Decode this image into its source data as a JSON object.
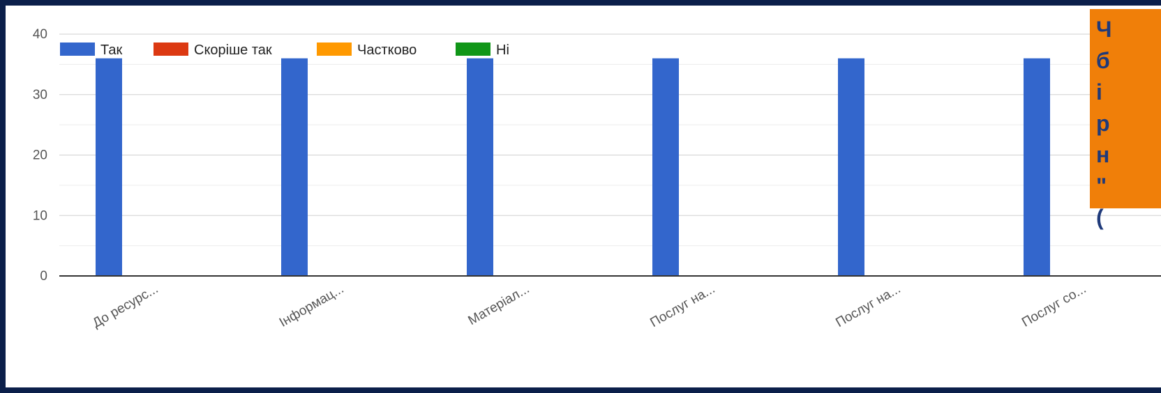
{
  "chart_data": {
    "type": "bar",
    "categories": [
      "До ресурс...",
      "Інформац...",
      "Матеріал...",
      "Послуг на...",
      "Послуг на...",
      "Послуг со..."
    ],
    "series": [
      {
        "name": "Так",
        "color": "#3366cc",
        "values": [
          36,
          36,
          36,
          36,
          36,
          36
        ]
      },
      {
        "name": "Скоріше так",
        "color": "#dc3912",
        "values": [
          0,
          0,
          0,
          0,
          0,
          0
        ]
      },
      {
        "name": "Частково",
        "color": "#ff9900",
        "values": [
          0,
          0,
          0,
          0,
          0,
          0
        ]
      },
      {
        "name": "Ні",
        "color": "#109618",
        "values": [
          0,
          0,
          0,
          0,
          0,
          0
        ]
      }
    ],
    "yticks": [
      0,
      10,
      20,
      30,
      40
    ],
    "ylim": [
      0,
      40
    ],
    "grid": true,
    "legend_position": "top-left",
    "title": "",
    "xlabel": "",
    "ylabel": ""
  },
  "callout": {
    "color": "#f07f09",
    "text": "Ч\nб\nі\nр\nн\n\"\n("
  }
}
